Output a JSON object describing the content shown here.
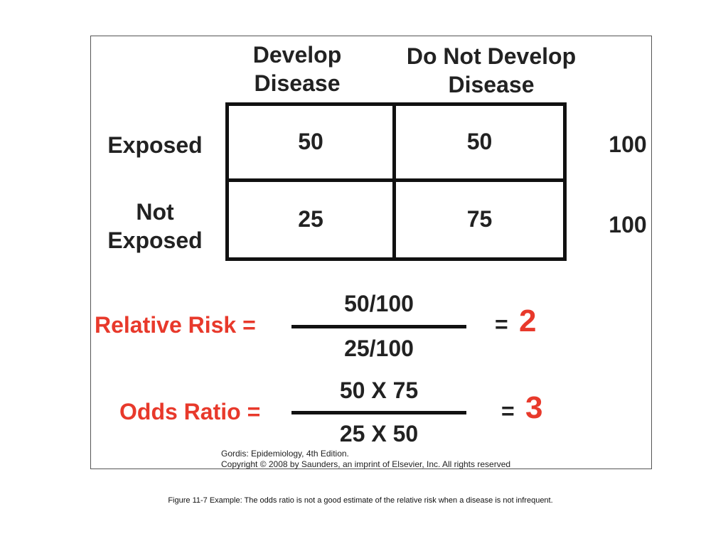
{
  "table": {
    "col_headers": [
      {
        "line1": "Develop",
        "line2": "Disease"
      },
      {
        "line1": "Do Not Develop",
        "line2": "Disease"
      }
    ],
    "rows": [
      {
        "label_line1": "Exposed",
        "label_line2": "",
        "cells": [
          "50",
          "50"
        ],
        "total": "100"
      },
      {
        "label_line1": "Not",
        "label_line2": "Exposed",
        "cells": [
          "25",
          "75"
        ],
        "total": "100"
      }
    ]
  },
  "relative_risk": {
    "label": "Relative Risk =",
    "numerator": "50/100",
    "denominator": "25/100",
    "equals": "=",
    "result": "2"
  },
  "odds_ratio": {
    "label": "Odds Ratio =",
    "numerator": "50 X 75",
    "denominator": "25 X 50",
    "equals": "=",
    "result": "3"
  },
  "credit": {
    "line1": "Gordis: Epidemiology, 4th Edition.",
    "line2": "Copyright © 2008 by Saunders, an imprint of Elsevier, Inc. All rights reserved"
  },
  "caption": "Figure 11-7 Example: The odds ratio is not a good estimate of the relative risk when a disease is not infrequent.",
  "colors": {
    "accent_red": "#e8392b",
    "ink": "#111111"
  }
}
